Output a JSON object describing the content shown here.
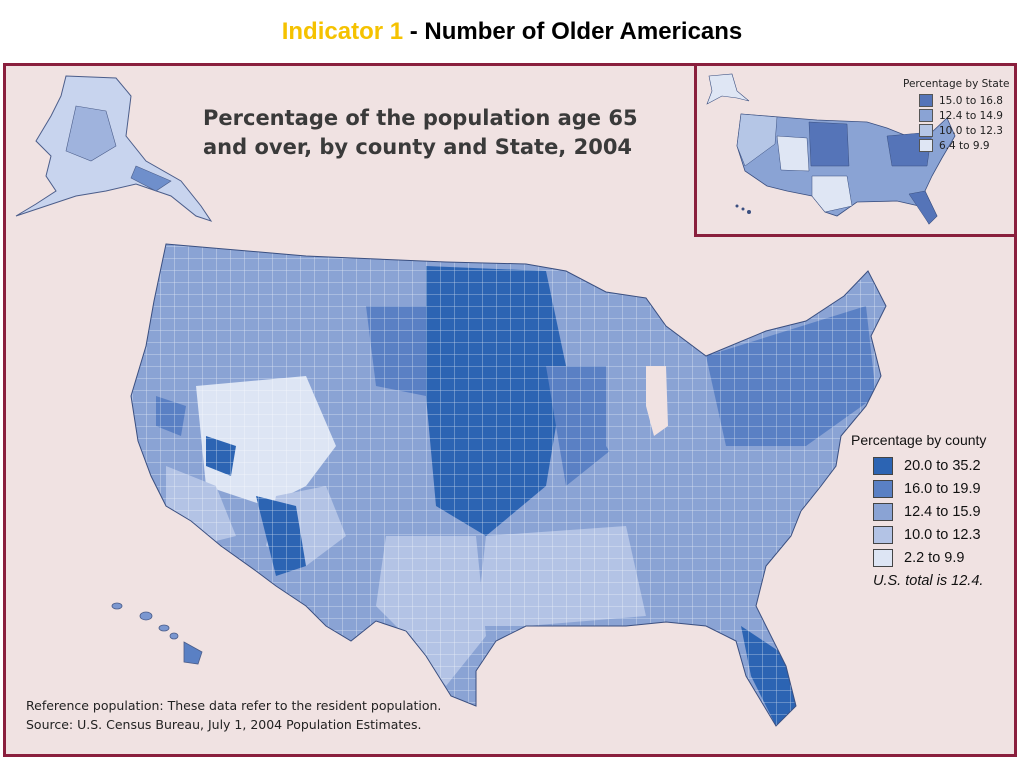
{
  "slide": {
    "title_highlight": "Indicator 1",
    "title_rest": " - Number of Older Americans"
  },
  "map": {
    "title_line1": "Percentage of the population age 65",
    "title_line2": "and over, by county and State, 2004"
  },
  "state_legend": {
    "title": "Percentage by State",
    "items": [
      {
        "label": "15.0 to 16.8",
        "color": "#5574b8"
      },
      {
        "label": "12.4 to 14.9",
        "color": "#8aa3d4"
      },
      {
        "label": "10.0  to 12.3",
        "color": "#b5c6e6"
      },
      {
        "label": "6.4 to 9.9",
        "color": "#dfe6f4"
      }
    ]
  },
  "county_legend": {
    "title": "Percentage by county",
    "items": [
      {
        "label": "20.0 to 35.2",
        "color": "#2c64b3"
      },
      {
        "label": "16.0 to 19.9",
        "color": "#5a80c4"
      },
      {
        "label": "12.4 to 15.9",
        "color": "#8aa3d4"
      },
      {
        "label": "10.0 to 12.3",
        "color": "#b3c3e5"
      },
      {
        "label": "2.2 to 9.9",
        "color": "#dde5f4"
      }
    ],
    "total_note": "U.S. total is 12.4."
  },
  "footnote": {
    "line1": "Reference population:  These data refer to the resident population.",
    "line2": "Source:  U.S. Census Bureau, July 1, 2004 Population Estimates."
  }
}
